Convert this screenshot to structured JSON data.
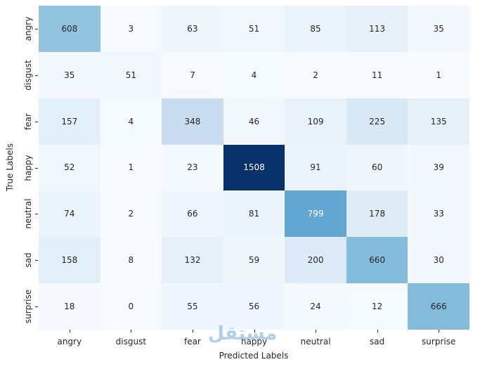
{
  "figure": {
    "watermark": "مستقل"
  },
  "chart_data": {
    "type": "heatmap",
    "title": "",
    "xlabel": "Predicted Labels",
    "ylabel": "True Labels",
    "x_categories": [
      "angry",
      "disgust",
      "fear",
      "happy",
      "neutral",
      "sad",
      "surprise"
    ],
    "y_categories": [
      "angry",
      "disgust",
      "fear",
      "happy",
      "neutral",
      "sad",
      "surprise"
    ],
    "matrix": [
      [
        608,
        3,
        63,
        51,
        85,
        113,
        35
      ],
      [
        35,
        51,
        7,
        4,
        2,
        11,
        1
      ],
      [
        157,
        4,
        348,
        46,
        109,
        225,
        135
      ],
      [
        52,
        1,
        23,
        1508,
        91,
        60,
        39
      ],
      [
        74,
        2,
        66,
        81,
        799,
        178,
        33
      ],
      [
        158,
        8,
        132,
        59,
        200,
        660,
        30
      ],
      [
        18,
        0,
        55,
        56,
        24,
        12,
        666
      ]
    ],
    "colormap": "Blues",
    "vmin": 0,
    "vmax": 1508,
    "grid": "off",
    "legend": "none",
    "annotation_dark_color": "#262626",
    "annotation_light_color": "#ffffff"
  }
}
